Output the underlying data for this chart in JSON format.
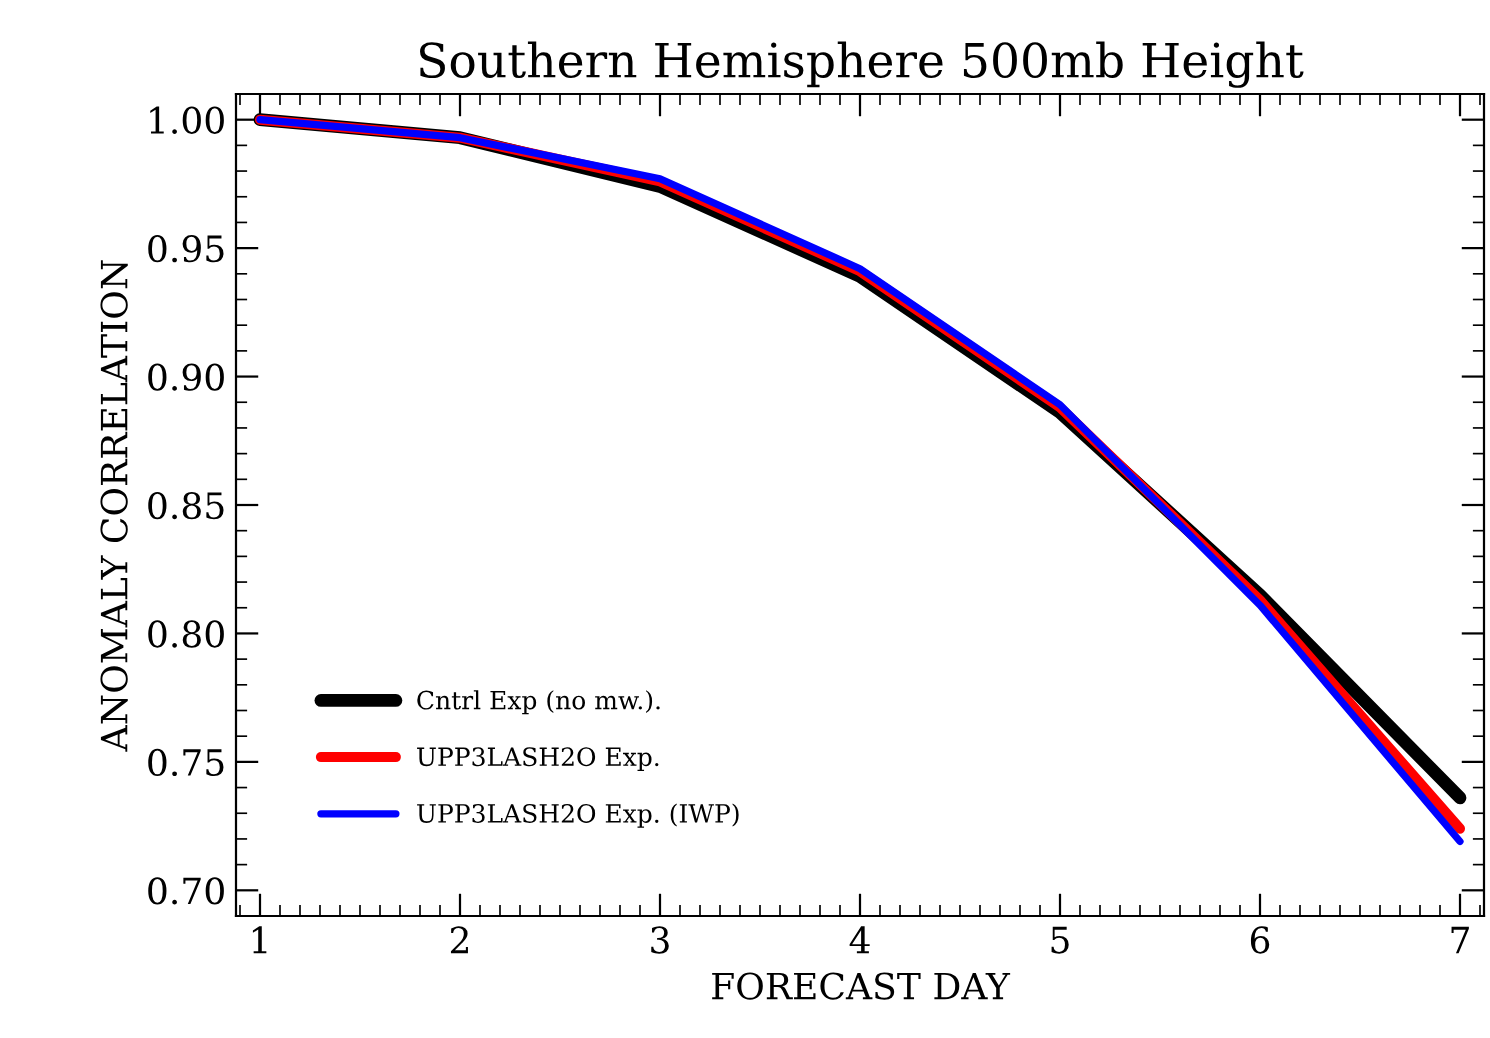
{
  "chart_data": {
    "type": "line",
    "title": "Southern Hemisphere 500mb Height",
    "xlabel": "FORECAST DAY",
    "ylabel": "ANOMALY CORRELATION",
    "x": [
      1,
      2,
      3,
      4,
      5,
      6,
      7
    ],
    "series": [
      {
        "name": "Cntrl Exp (no mw.).",
        "color": "#000000",
        "values": [
          1.0,
          0.993,
          0.974,
          0.939,
          0.886,
          0.815,
          0.736
        ]
      },
      {
        "name": "UPP3LASH2O Exp.",
        "color": "#ff0000",
        "values": [
          1.0,
          0.993,
          0.976,
          0.941,
          0.888,
          0.813,
          0.724
        ]
      },
      {
        "name": "UPP3LASH2O Exp. (IWP)",
        "color": "#0000ff",
        "values": [
          1.0,
          0.993,
          0.977,
          0.942,
          0.889,
          0.811,
          0.719
        ]
      }
    ],
    "xlim": [
      0.88,
      7.12
    ],
    "ylim": [
      0.69,
      1.01
    ],
    "xticks": [
      1,
      2,
      3,
      4,
      5,
      6,
      7
    ],
    "yticks": [
      {
        "value": 0.7,
        "label": "0.70"
      },
      {
        "value": 0.75,
        "label": "0.75"
      },
      {
        "value": 0.8,
        "label": "0.80"
      },
      {
        "value": 0.85,
        "label": "0.85"
      },
      {
        "value": 0.9,
        "label": "0.90"
      },
      {
        "value": 0.95,
        "label": "0.95"
      },
      {
        "value": 1.0,
        "label": "1.00"
      }
    ],
    "grid": false,
    "legend": "bottom left",
    "marker": "none",
    "line_style": "solid"
  }
}
